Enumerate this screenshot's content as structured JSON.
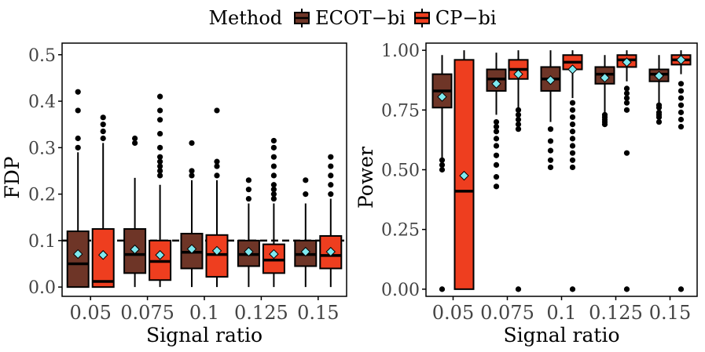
{
  "legend": {
    "title": "Method",
    "items": [
      {
        "label": "ECOT−bi",
        "color": "#6e3527"
      },
      {
        "label": "CP−bi",
        "color": "#ee3e1f"
      }
    ]
  },
  "chart_data": [
    {
      "type": "box",
      "title": "",
      "xlabel": "Signal ratio",
      "ylabel": "FDP",
      "categories": [
        "0.05",
        "0.075",
        "0.1",
        "0.125",
        "0.15"
      ],
      "ylim": [
        -0.02,
        0.525
      ],
      "yticks": [
        0.0,
        0.1,
        0.2,
        0.3,
        0.4,
        0.5
      ],
      "ytick_labels": [
        "0.0",
        "0.1",
        "0.2",
        "0.3",
        "0.4",
        "0.5"
      ],
      "reference_line": 0.1,
      "grid": false,
      "mean_marker_color": "#7fe9ef",
      "series": [
        {
          "name": "ECOT−bi",
          "color": "#6e3527",
          "boxes": [
            {
              "q1": 0.0,
              "median": 0.05,
              "q3": 0.12,
              "whisker_low": 0.0,
              "whisker_high": 0.29,
              "mean": 0.071,
              "outliers": [
                0.3,
                0.32,
                0.38,
                0.42
              ]
            },
            {
              "q1": 0.03,
              "median": 0.07,
              "q3": 0.125,
              "whisker_low": 0.0,
              "whisker_high": 0.235,
              "mean": 0.081,
              "outliers": [
                0.31,
                0.32
              ]
            },
            {
              "q1": 0.04,
              "median": 0.075,
              "q3": 0.115,
              "whisker_low": 0.0,
              "whisker_high": 0.23,
              "mean": 0.082,
              "outliers": [
                0.24,
                0.25,
                0.31
              ]
            },
            {
              "q1": 0.045,
              "median": 0.07,
              "q3": 0.1,
              "whisker_low": 0.0,
              "whisker_high": 0.18,
              "mean": 0.076,
              "outliers": [
                0.19,
                0.21,
                0.23
              ]
            },
            {
              "q1": 0.045,
              "median": 0.07,
              "q3": 0.1,
              "whisker_low": 0.0,
              "whisker_high": 0.18,
              "mean": 0.076,
              "outliers": [
                0.2,
                0.23
              ]
            }
          ]
        },
        {
          "name": "CP−bi",
          "color": "#ee3e1f",
          "boxes": [
            {
              "q1": 0.0,
              "median": 0.012,
              "q3": 0.125,
              "whisker_low": 0.0,
              "whisker_high": 0.31,
              "mean": 0.069,
              "outliers": [
                0.32,
                0.335,
                0.35,
                0.365
              ]
            },
            {
              "q1": 0.015,
              "median": 0.055,
              "q3": 0.1,
              "whisker_low": 0.0,
              "whisker_high": 0.22,
              "mean": 0.069,
              "outliers": [
                0.24,
                0.25,
                0.26,
                0.27,
                0.28,
                0.3,
                0.33,
                0.36,
                0.38,
                0.41
              ]
            },
            {
              "q1": 0.022,
              "median": 0.07,
              "q3": 0.112,
              "whisker_low": 0.0,
              "whisker_high": 0.23,
              "mean": 0.078,
              "outliers": [
                0.24,
                0.26,
                0.27,
                0.38
              ]
            },
            {
              "q1": 0.03,
              "median": 0.058,
              "q3": 0.092,
              "whisker_low": 0.0,
              "whisker_high": 0.18,
              "mean": 0.071,
              "outliers": [
                0.19,
                0.2,
                0.21,
                0.22,
                0.24,
                0.26,
                0.28,
                0.3,
                0.315
              ]
            },
            {
              "q1": 0.04,
              "median": 0.068,
              "q3": 0.11,
              "whisker_low": 0.0,
              "whisker_high": 0.19,
              "mean": 0.076,
              "outliers": [
                0.2,
                0.22,
                0.24,
                0.26,
                0.28
              ]
            }
          ]
        }
      ]
    },
    {
      "type": "box",
      "title": "",
      "xlabel": "Signal ratio",
      "ylabel": "Power",
      "categories": [
        "0.05",
        "0.075",
        "0.1",
        "0.125",
        "0.15"
      ],
      "ylim": [
        -0.03,
        1.03
      ],
      "yticks": [
        0.0,
        0.25,
        0.5,
        0.75,
        1.0
      ],
      "ytick_labels": [
        "0.00",
        "0.25",
        "0.50",
        "0.75",
        "1.00"
      ],
      "grid": false,
      "mean_marker_color": "#7fe9ef",
      "series": [
        {
          "name": "ECOT−bi",
          "color": "#6e3527",
          "boxes": [
            {
              "q1": 0.76,
              "median": 0.83,
              "q3": 0.9,
              "whisker_low": 0.55,
              "whisker_high": 0.98,
              "mean": 0.805,
              "outliers": [
                0.0,
                0.5,
                0.52,
                0.54
              ]
            },
            {
              "q1": 0.83,
              "median": 0.88,
              "q3": 0.92,
              "whisker_low": 0.73,
              "whisker_high": 0.99,
              "mean": 0.86,
              "outliers": [
                0.43,
                0.47,
                0.52,
                0.56,
                0.6,
                0.63,
                0.66,
                0.68,
                0.7
              ]
            },
            {
              "q1": 0.83,
              "median": 0.88,
              "q3": 0.93,
              "whisker_low": 0.7,
              "whisker_high": 1.0,
              "mean": 0.875,
              "outliers": [
                0.51,
                0.54,
                0.58,
                0.62,
                0.67
              ]
            },
            {
              "q1": 0.86,
              "median": 0.9,
              "q3": 0.93,
              "whisker_low": 0.74,
              "whisker_high": 0.98,
              "mean": 0.885,
              "outliers": [
                0.69,
                0.7,
                0.71,
                0.72,
                0.73
              ]
            },
            {
              "q1": 0.87,
              "median": 0.9,
              "q3": 0.92,
              "whisker_low": 0.78,
              "whisker_high": 0.98,
              "mean": 0.893,
              "outliers": [
                0.7,
                0.72,
                0.73,
                0.74,
                0.76,
                0.77
              ]
            }
          ]
        },
        {
          "name": "CP−bi",
          "color": "#ee3e1f",
          "boxes": [
            {
              "q1": 0.0,
              "median": 0.41,
              "q3": 0.96,
              "whisker_low": 0.0,
              "whisker_high": 1.0,
              "mean": 0.475,
              "outliers": []
            },
            {
              "q1": 0.88,
              "median": 0.92,
              "q3": 0.96,
              "whisker_low": 0.76,
              "whisker_high": 1.0,
              "mean": 0.9,
              "outliers": [
                0.0,
                0.67,
                0.69,
                0.71,
                0.73,
                0.75
              ]
            },
            {
              "q1": 0.92,
              "median": 0.95,
              "q3": 0.98,
              "whisker_low": 0.8,
              "whisker_high": 1.0,
              "mean": 0.92,
              "outliers": [
                0.0,
                0.51,
                0.54,
                0.57,
                0.6,
                0.63,
                0.66,
                0.69,
                0.72,
                0.75,
                0.78
              ]
            },
            {
              "q1": 0.93,
              "median": 0.96,
              "q3": 0.98,
              "whisker_low": 0.87,
              "whisker_high": 1.0,
              "mean": 0.95,
              "outliers": [
                0.0,
                0.57,
                0.75,
                0.78,
                0.8,
                0.82,
                0.84
              ]
            },
            {
              "q1": 0.94,
              "median": 0.96,
              "q3": 0.98,
              "whisker_low": 0.9,
              "whisker_high": 1.0,
              "mean": 0.96,
              "outliers": [
                0.0,
                0.68,
                0.71,
                0.74,
                0.77,
                0.8,
                0.83,
                0.86
              ]
            }
          ]
        }
      ]
    }
  ]
}
